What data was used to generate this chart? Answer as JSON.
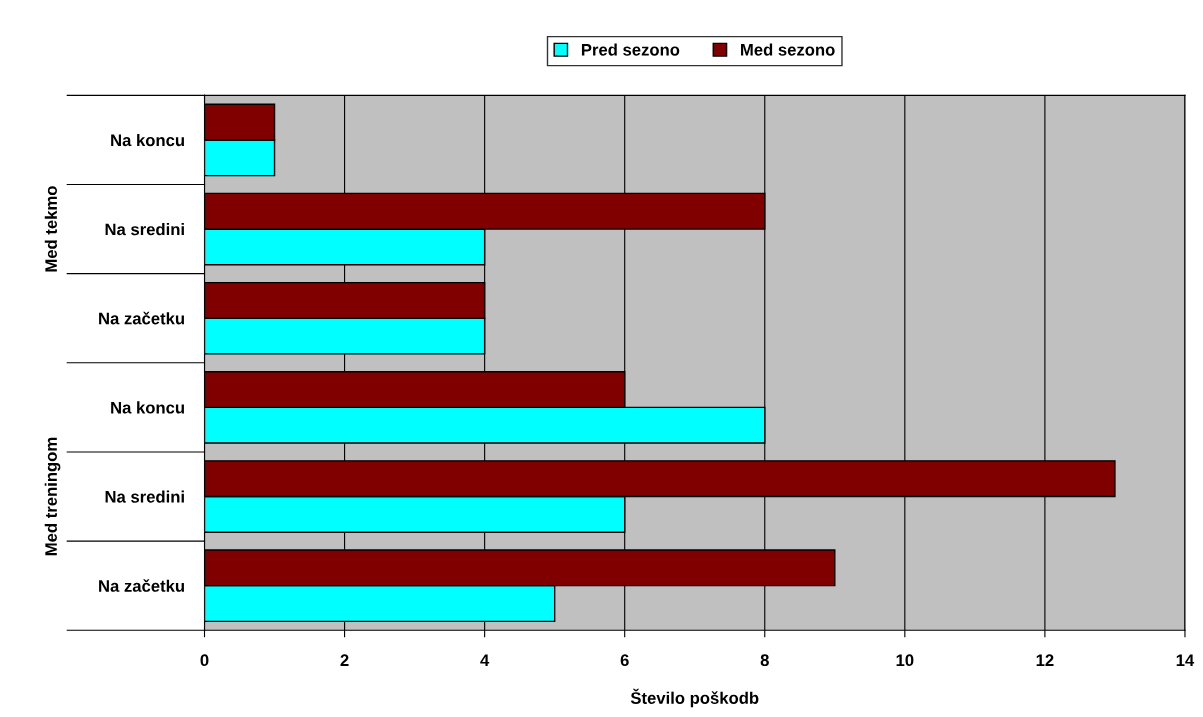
{
  "chart_data": {
    "type": "bar",
    "orientation": "horizontal",
    "xlabel": "Število poškodb",
    "categories": [
      "Na koncu",
      "Na sredini",
      "Na začetku",
      "Na koncu",
      "Na sredini",
      "Na začetku"
    ],
    "series": [
      {
        "name": "Pred sezono",
        "color": "#00ffff",
        "values": [
          1,
          4,
          4,
          8,
          6,
          5
        ]
      },
      {
        "name": "Med sezono",
        "color": "#800000",
        "values": [
          1,
          8,
          4,
          6,
          13,
          9
        ]
      }
    ],
    "annotations": [
      "Med tekmo",
      "Med treningom"
    ],
    "xlim": [
      0,
      14
    ],
    "xticks": [
      0,
      2,
      4,
      6,
      8,
      10,
      12,
      14
    ],
    "grid": "x",
    "legend": "top"
  }
}
